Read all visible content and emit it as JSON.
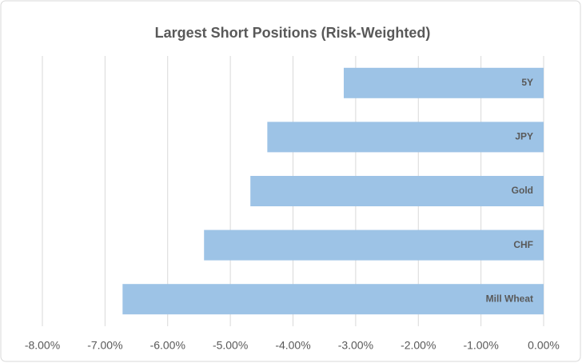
{
  "chart_data": {
    "type": "bar",
    "orientation": "horizontal",
    "title": "Largest Short Positions (Risk-Weighted)",
    "categories": [
      "5Y",
      "JPY",
      "Gold",
      "CHF",
      "Mill Wheat"
    ],
    "values": [
      -3.19,
      -4.41,
      -4.68,
      -5.42,
      -6.72
    ],
    "color": "#9dc3e6",
    "xlim": [
      -8,
      0
    ],
    "xticks": [
      {
        "value": -8,
        "label": "-8.00%"
      },
      {
        "value": -7,
        "label": "-7.00%"
      },
      {
        "value": -6,
        "label": "-6.00%"
      },
      {
        "value": -5,
        "label": "-5.00%"
      },
      {
        "value": -4,
        "label": "-4.00%"
      },
      {
        "value": -3,
        "label": "-3.00%"
      },
      {
        "value": -2,
        "label": "-2.00%"
      },
      {
        "value": -1,
        "label": "-1.00%"
      },
      {
        "value": 0,
        "label": "0.00%"
      }
    ],
    "grid": true
  }
}
